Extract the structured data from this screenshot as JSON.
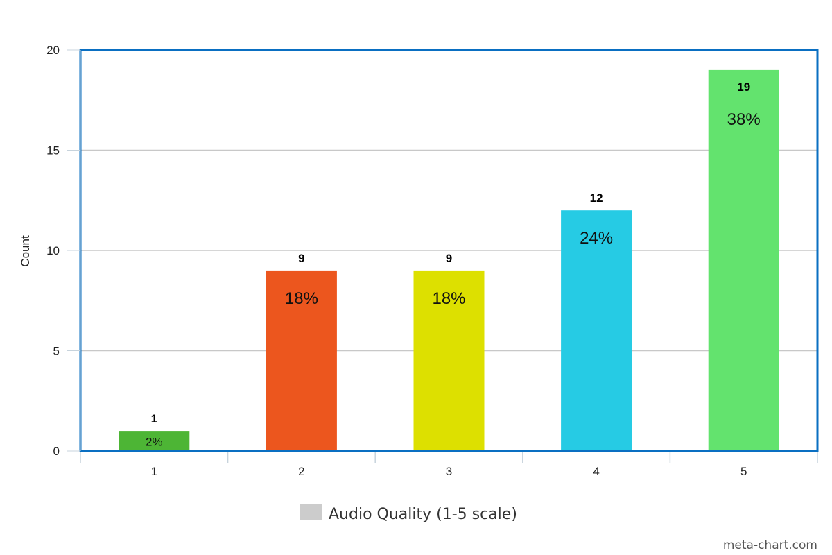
{
  "chart_data": {
    "type": "bar",
    "categories": [
      "1",
      "2",
      "3",
      "4",
      "5"
    ],
    "values": [
      1,
      9,
      9,
      12,
      19
    ],
    "percent_labels": [
      "2%",
      "18%",
      "18%",
      "24%",
      "38%"
    ],
    "colors": [
      "#4db535",
      "#ec561e",
      "#dde000",
      "#26cbe4",
      "#63e36e"
    ],
    "ylabel": "Count",
    "xlabel": "",
    "ylim": [
      0,
      20
    ],
    "yticks": [
      "0",
      "5",
      "10",
      "15",
      "20"
    ],
    "grid": true,
    "legend": {
      "label": "Audio Quality (1-5 scale)",
      "color": "#cccccc",
      "placement": "bottom-center"
    },
    "frame_color": "#0a6fc2"
  },
  "watermark": "meta-chart.com"
}
